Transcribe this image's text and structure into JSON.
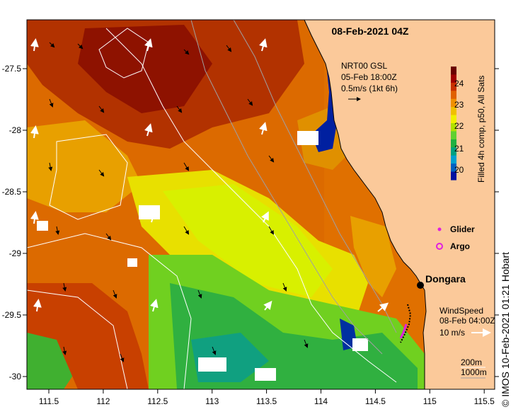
{
  "title": "08-Feb-2021 04Z",
  "current": {
    "line1": "NRT00 GSL",
    "line2": "05-Feb 18:00Z",
    "line3": "0.5m/s (1kt 6h)"
  },
  "colorbar": {
    "label": "Filled 4h comp, p50, All Sats",
    "ticks": [
      "24",
      "23",
      "22",
      "21",
      "20"
    ],
    "colors": [
      "#6a0000",
      "#a00000",
      "#c83000",
      "#e06000",
      "#f09000",
      "#f0c000",
      "#f0f000",
      "#b0e000",
      "#60d030",
      "#20b040",
      "#00a080",
      "#00a0d0",
      "#0060c0",
      "#0010a0"
    ]
  },
  "legend": {
    "glider": "Glider",
    "argo": "Argo",
    "glider_color": "#e020e0",
    "argo_color": "#e020e0"
  },
  "place": "Dongara",
  "wind": {
    "line1": "WindSpeed",
    "line2": "08-Feb 04:00Z",
    "line3": "10 m/s"
  },
  "contours": {
    "line1": "200m",
    "line2": "1000m"
  },
  "axes": {
    "x_ticks": [
      "111.5",
      "112",
      "112.5",
      "113",
      "113.5",
      "114",
      "114.5",
      "115",
      "115.5"
    ],
    "y_ticks": [
      "-27.5",
      "-28",
      "-28.5",
      "-29",
      "-29.5",
      "-30"
    ]
  },
  "credit": "© IMOS 10-Feb-2021 01:21 Hobart",
  "land_color": "#fbc99a"
}
